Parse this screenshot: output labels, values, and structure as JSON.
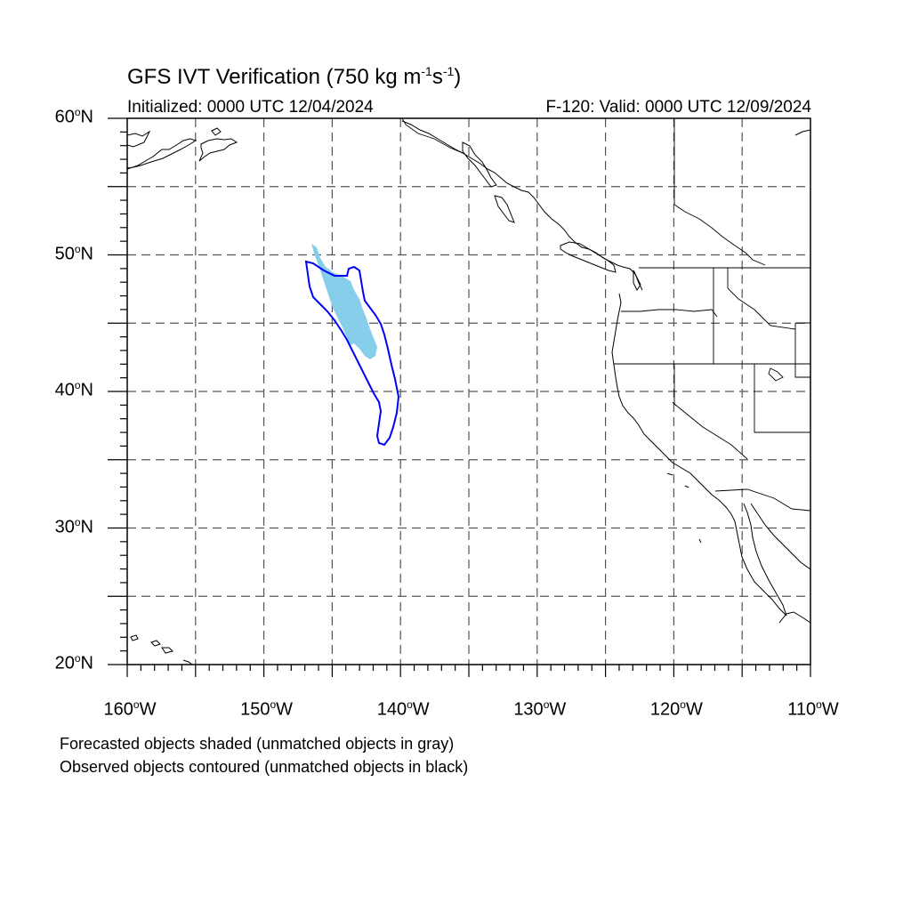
{
  "title": {
    "main": "GFS IVT Verification (750 kg m",
    "sup1": "-1",
    "mid": "s",
    "sup2": "-1",
    "end": ")"
  },
  "subtitle_left": "Initialized: 0000 UTC 12/04/2024",
  "subtitle_right": "F-120: Valid: 0000 UTC 12/09/2024",
  "notes": [
    "Forecasted objects shaded (unmatched objects in gray)",
    "Observed objects contoured (unmatched objects in black)"
  ],
  "map": {
    "lon_range": [
      -160,
      -110
    ],
    "lat_range": [
      20,
      60
    ],
    "lat_labels": [
      {
        "deg": "60",
        "hem": "N"
      },
      {
        "deg": "50",
        "hem": "N"
      },
      {
        "deg": "40",
        "hem": "N"
      },
      {
        "deg": "30",
        "hem": "N"
      },
      {
        "deg": "20",
        "hem": "N"
      }
    ],
    "lon_labels": [
      {
        "deg": "160",
        "hem": "W"
      },
      {
        "deg": "150",
        "hem": "W"
      },
      {
        "deg": "140",
        "hem": "W"
      },
      {
        "deg": "130",
        "hem": "W"
      },
      {
        "deg": "120",
        "hem": "W"
      },
      {
        "deg": "110",
        "hem": "W"
      }
    ],
    "grid_style": "dashed",
    "forecast_object_color": "#87ceeb",
    "observed_contour_color": "#0000ff",
    "coastline_color": "#000000"
  }
}
